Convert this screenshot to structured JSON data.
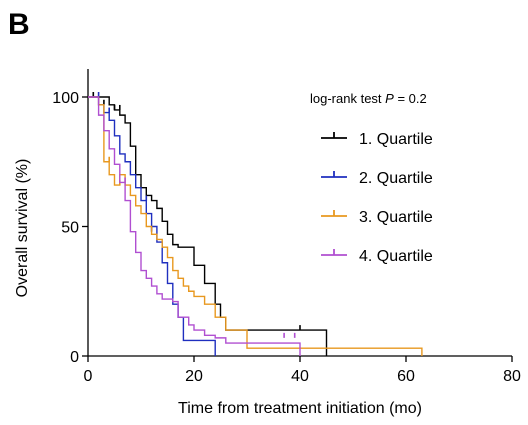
{
  "panel_label": "B",
  "chart_data": {
    "type": "line",
    "step": true,
    "xlabel": "Time from treatment initiation (mo)",
    "ylabel": "Overall survival (%)",
    "xlim": [
      0,
      80
    ],
    "ylim": [
      0,
      100
    ],
    "x_ticks": [
      0,
      20,
      40,
      60,
      80
    ],
    "y_ticks": [
      0,
      50,
      100
    ],
    "grid": false,
    "legend_position": "right",
    "annotation": {
      "prefix": "log-rank test ",
      "stat": "P",
      "suffix": " = 0.2"
    },
    "series": [
      {
        "name": "1. Quartile",
        "color": "#000000",
        "x": [
          0,
          2,
          4,
          5,
          6,
          7,
          8,
          9,
          10,
          11,
          12,
          13,
          14,
          15,
          16,
          17,
          19,
          20,
          22,
          24,
          25,
          26,
          45
        ],
        "y": [
          100,
          100,
          97,
          95,
          93,
          90,
          81,
          70,
          65,
          62,
          60,
          57,
          52,
          47,
          43,
          42,
          42,
          35,
          28,
          20,
          15,
          10,
          0
        ],
        "censored": [
          [
            1,
            100
          ],
          [
            3,
            97
          ],
          [
            5,
            95
          ],
          [
            6,
            95
          ],
          [
            40,
            10
          ]
        ]
      },
      {
        "name": "2. Quartile",
        "color": "#1f2fbf",
        "x": [
          0,
          2,
          3,
          4,
          5,
          6,
          7,
          8,
          9,
          10,
          11,
          12,
          13,
          14,
          15,
          16,
          17,
          18,
          20,
          24
        ],
        "y": [
          100,
          97,
          94,
          91,
          85,
          78,
          75,
          70,
          65,
          60,
          55,
          50,
          44,
          36,
          28,
          20,
          15,
          6,
          6,
          0
        ],
        "censored": [
          [
            2,
            100
          ],
          [
            4,
            94
          ],
          [
            11,
            60
          ],
          [
            12,
            48
          ]
        ]
      },
      {
        "name": "3. Quartile",
        "color": "#e8981f",
        "x": [
          0,
          2,
          3,
          4,
          5,
          6,
          7,
          8,
          9,
          10,
          11,
          12,
          13,
          14,
          15,
          16,
          17,
          18,
          19,
          20,
          22,
          24,
          26,
          30,
          63
        ],
        "y": [
          100,
          97,
          75,
          70,
          66,
          70,
          66,
          62,
          58,
          55,
          50,
          47,
          45,
          42,
          38,
          33,
          30,
          27,
          25,
          23,
          20,
          15,
          10,
          3,
          0
        ],
        "censored": [
          [
            4,
            75
          ],
          [
            6,
            66
          ]
        ]
      },
      {
        "name": "4. Quartile",
        "color": "#b04fd1",
        "x": [
          0,
          2,
          3,
          4,
          5,
          6,
          7,
          8,
          9,
          10,
          11,
          12,
          13,
          14,
          15,
          16,
          17,
          18,
          19,
          20,
          22,
          24,
          26,
          40
        ],
        "y": [
          100,
          93,
          87,
          80,
          74,
          67,
          60,
          48,
          40,
          33,
          30,
          27,
          24,
          22,
          22,
          21,
          15,
          15,
          12,
          10,
          8,
          7,
          5,
          0
        ],
        "censored": [
          [
            7,
            67
          ],
          [
            37,
            7
          ],
          [
            39,
            7
          ]
        ]
      }
    ]
  }
}
